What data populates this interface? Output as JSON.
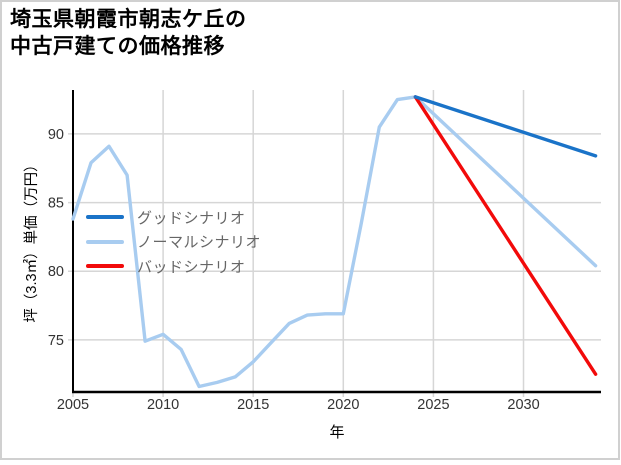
{
  "window": {
    "background": "#ffffff",
    "border_color": "#d0d0d0"
  },
  "chart_data": {
    "type": "line",
    "title": "埼玉県朝霞市朝志ケ丘の中古戸建ての価格推移",
    "title_display": "埼玉県朝霞市朝志ケ丘の\n中古戸建ての価格推移",
    "xlabel": "年",
    "ylabel": "坪（3.3㎡）単価（万円）",
    "x_ticks": [
      2005,
      2010,
      2015,
      2020,
      2025,
      2030
    ],
    "y_ticks": [
      75,
      80,
      85,
      90
    ],
    "xlim": [
      2005,
      2034.3
    ],
    "ylim": [
      71.2,
      93.2
    ],
    "grid": true,
    "grid_color": "#d6d6d6",
    "axis_color": "#000000",
    "tick_label_color": "#333333",
    "legend_position": "upper-left-inside",
    "legend_text_color": "#666666",
    "series": [
      {
        "name": "グッドシナリオ",
        "color": "#1a73c8",
        "x": [
          2024,
          2034
        ],
        "y": [
          92.7,
          88.4
        ]
      },
      {
        "name": "ノーマルシナリオ",
        "color": "#a8ccf0",
        "x": [
          2005,
          2006,
          2007,
          2008,
          2009,
          2010,
          2011,
          2012,
          2013,
          2014,
          2015,
          2016,
          2017,
          2018,
          2019,
          2020,
          2021,
          2022,
          2023,
          2024,
          2034
        ],
        "y": [
          83.8,
          87.9,
          89.1,
          87.0,
          74.9,
          75.4,
          74.3,
          71.6,
          71.9,
          72.3,
          73.4,
          74.8,
          76.2,
          76.8,
          76.9,
          76.9,
          83.5,
          90.5,
          92.5,
          92.7,
          80.4
        ]
      },
      {
        "name": "バッドシナリオ",
        "color": "#f20a0a",
        "x": [
          2024,
          2034
        ],
        "y": [
          92.7,
          72.5
        ]
      }
    ],
    "draw_order": [
      1,
      2,
      0
    ]
  }
}
